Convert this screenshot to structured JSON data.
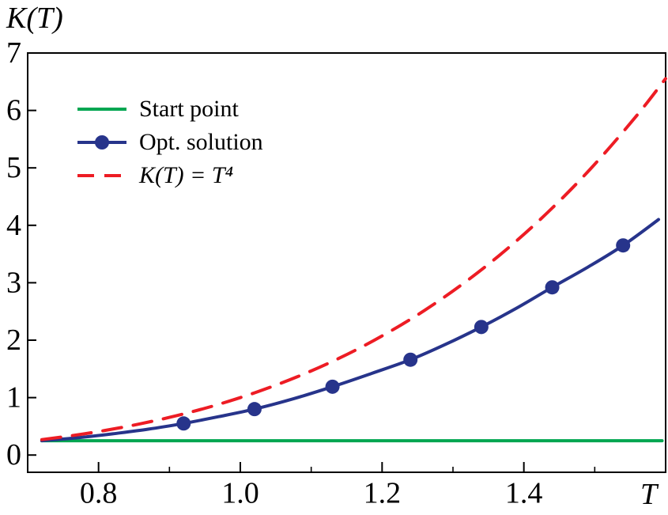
{
  "chart_data": {
    "type": "line",
    "title": "",
    "xlabel": "T",
    "ylabel": "K(T)",
    "xlim": [
      0.7,
      1.6
    ],
    "ylim": [
      -0.3,
      7.0
    ],
    "yticks": [
      0,
      1,
      2,
      3,
      4,
      5,
      6,
      7
    ],
    "xtick_values": [
      0.8,
      1.0,
      1.2,
      1.4
    ],
    "xtick_labels": [
      "0.8",
      "1.0",
      "1.2",
      "1.4"
    ],
    "xticks_minor": [
      0.9,
      1.1,
      1.3,
      1.5
    ],
    "grid": false,
    "legend_position": "upper left inside",
    "series": [
      {
        "name": "Start point",
        "color": "#00A651",
        "line_style": "solid",
        "line_width": 4,
        "x": [
          0.72,
          1.595
        ],
        "y": [
          0.25,
          0.25
        ]
      },
      {
        "name": "Opt. solution",
        "color": "#27348B",
        "line_style": "solid",
        "line_width": 4,
        "marker": "circle",
        "marker_size": 9,
        "x": [
          0.72,
          0.77,
          0.82,
          0.87,
          0.92,
          0.97,
          1.02,
          1.075,
          1.13,
          1.185,
          1.24,
          1.29,
          1.34,
          1.39,
          1.44,
          1.49,
          1.54,
          1.59
        ],
        "y": [
          0.25,
          0.3,
          0.37,
          0.45,
          0.55,
          0.67,
          0.8,
          0.98,
          1.19,
          1.42,
          1.66,
          1.93,
          2.23,
          2.56,
          2.92,
          3.27,
          3.65,
          4.1
        ],
        "marker_points": {
          "x": [
            0.92,
            1.02,
            1.13,
            1.24,
            1.34,
            1.44,
            1.54
          ],
          "y": [
            0.55,
            0.8,
            1.19,
            1.66,
            2.23,
            2.92,
            3.65
          ]
        }
      },
      {
        "name": "K(T) = T⁴",
        "color": "#ED1C24",
        "line_style": "dashed",
        "line_width": 4,
        "x": [
          0.72,
          0.78,
          0.84,
          0.9,
          0.96,
          1.02,
          1.08,
          1.14,
          1.2,
          1.26,
          1.32,
          1.38,
          1.44,
          1.5,
          1.56,
          1.6
        ],
        "y": [
          0.269,
          0.37,
          0.498,
          0.656,
          0.849,
          1.083,
          1.361,
          1.689,
          2.074,
          2.52,
          3.036,
          3.627,
          4.3,
          5.063,
          5.922,
          6.554
        ]
      }
    ]
  }
}
